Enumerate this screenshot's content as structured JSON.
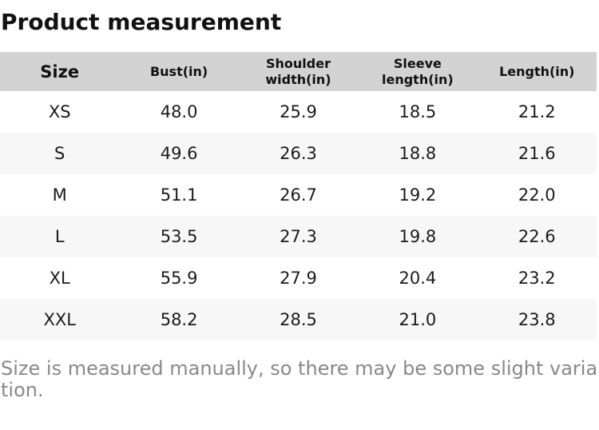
{
  "title": "Product measurement",
  "table": {
    "columns": [
      "Size",
      "Bust(in)",
      "Shoulder width(in)",
      "Sleeve length(in)",
      "Length(in)"
    ],
    "rows": [
      [
        "XS",
        "48.0",
        "25.9",
        "18.5",
        "21.2"
      ],
      [
        "S",
        "49.6",
        "26.3",
        "18.8",
        "21.6"
      ],
      [
        "M",
        "51.1",
        "26.7",
        "19.2",
        "22.0"
      ],
      [
        "L",
        "53.5",
        "27.3",
        "19.8",
        "22.6"
      ],
      [
        "XL",
        "55.9",
        "27.9",
        "20.4",
        "23.2"
      ],
      [
        "XXL",
        "58.2",
        "28.5",
        "21.0",
        "23.8"
      ]
    ]
  },
  "note": "Size is measured manually, so there may be some slight variation.",
  "colors": {
    "header_bg": "#d3d3d3",
    "row_alt_bg": "#f7f7f7",
    "text": "#1b1b1b",
    "note_text": "#888888"
  }
}
